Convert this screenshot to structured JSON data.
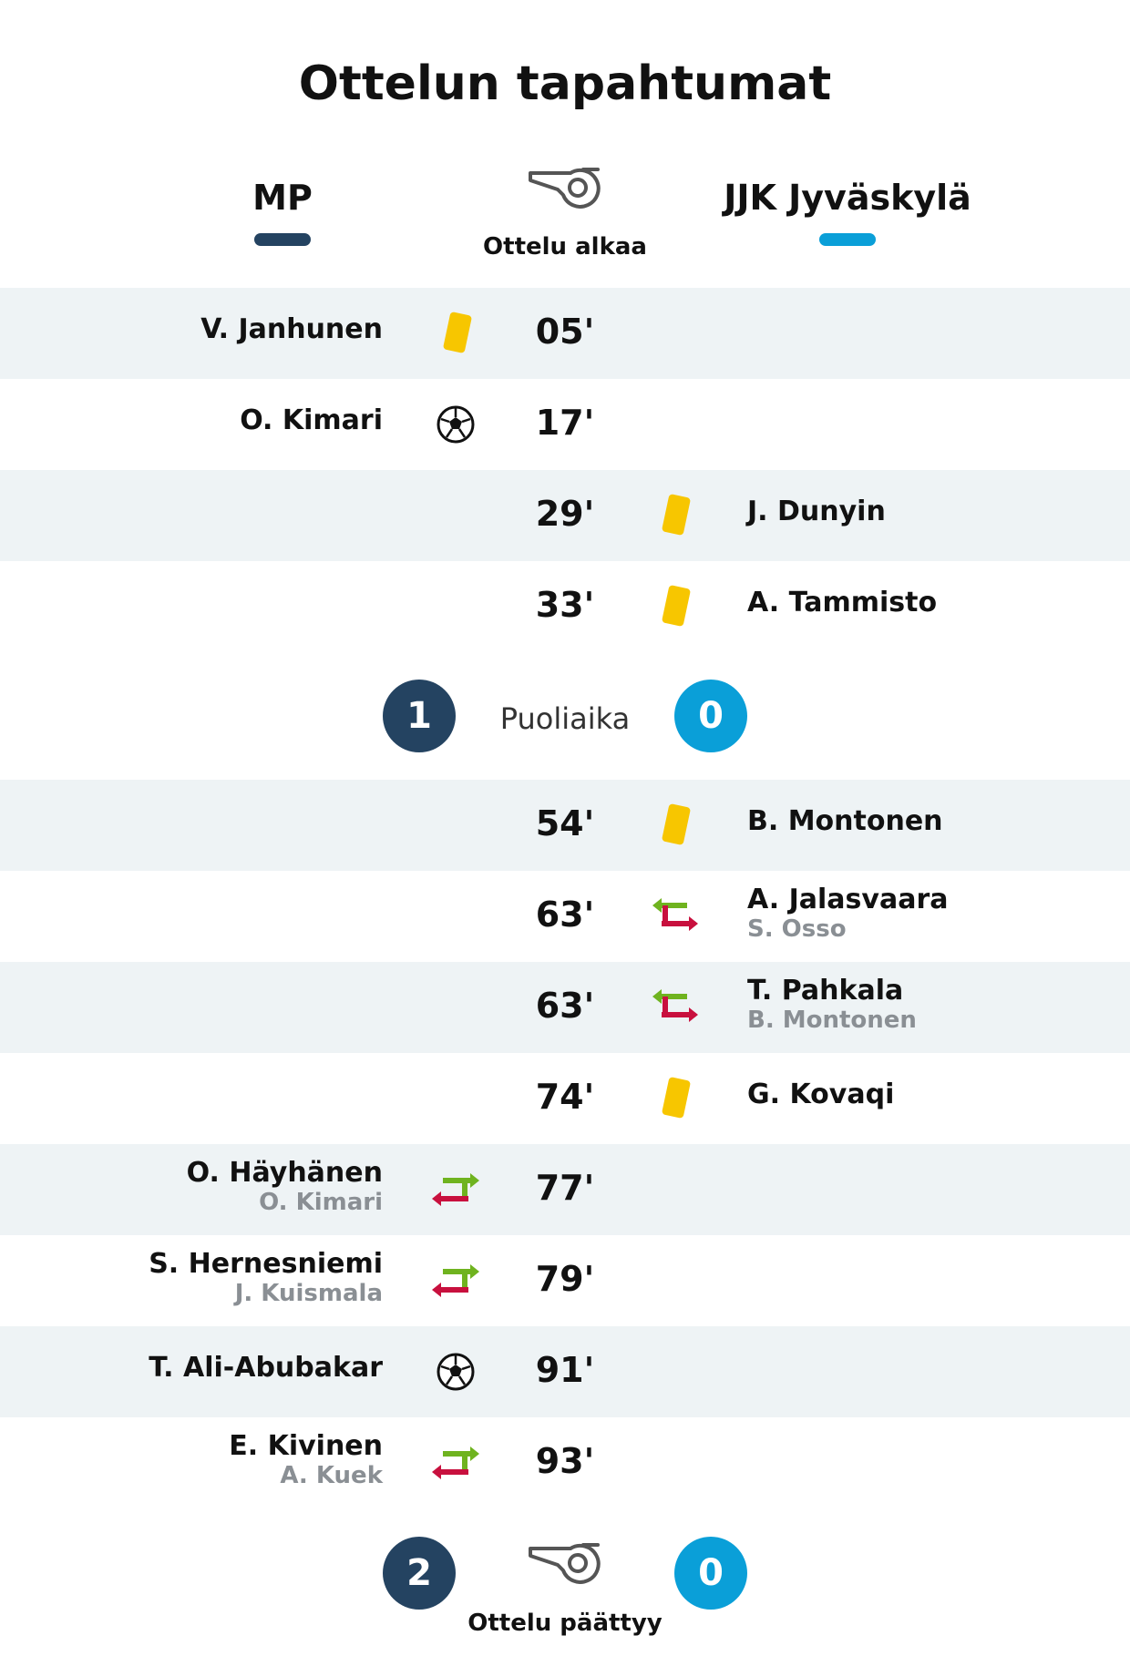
{
  "title": "Ottelun tapahtumat",
  "teams": {
    "home": "MP",
    "away": "JJK Jyväskylä",
    "home_color": "#244361",
    "away_color": "#0a9fd8"
  },
  "kickoff_label": "Ottelu alkaa",
  "halftime": {
    "label": "Puoliaika",
    "home_score": "1",
    "away_score": "0"
  },
  "fulltime": {
    "label": "Ottelu päättyy",
    "home_score": "2",
    "away_score": "0"
  },
  "events_first_half": [
    {
      "minute": "05'",
      "team": "home",
      "type": "yellow-card",
      "player": "V. Janhunen",
      "sub_out": ""
    },
    {
      "minute": "17'",
      "team": "home",
      "type": "goal",
      "player": "O. Kimari",
      "sub_out": ""
    },
    {
      "minute": "29'",
      "team": "away",
      "type": "yellow-card",
      "player": "J. Dunyin",
      "sub_out": ""
    },
    {
      "minute": "33'",
      "team": "away",
      "type": "yellow-card",
      "player": "A. Tammisto",
      "sub_out": ""
    }
  ],
  "events_second_half": [
    {
      "minute": "54'",
      "team": "away",
      "type": "yellow-card",
      "player": "B. Montonen",
      "sub_out": ""
    },
    {
      "minute": "63'",
      "team": "away",
      "type": "substitution",
      "player": "A. Jalasvaara",
      "sub_out": "S. Osso"
    },
    {
      "minute": "63'",
      "team": "away",
      "type": "substitution",
      "player": "T. Pahkala",
      "sub_out": "B. Montonen"
    },
    {
      "minute": "74'",
      "team": "away",
      "type": "yellow-card",
      "player": "G. Kovaqi",
      "sub_out": ""
    },
    {
      "minute": "77'",
      "team": "home",
      "type": "substitution",
      "player": "O. Häyhänen",
      "sub_out": "O. Kimari"
    },
    {
      "minute": "79'",
      "team": "home",
      "type": "substitution",
      "player": "S. Hernesniemi",
      "sub_out": "J. Kuismala"
    },
    {
      "minute": "91'",
      "team": "home",
      "type": "goal",
      "player": "T. Ali-Abubakar",
      "sub_out": ""
    },
    {
      "minute": "93'",
      "team": "home",
      "type": "substitution",
      "player": "E. Kivinen",
      "sub_out": "A. Kuek"
    }
  ],
  "colors": {
    "yellow_card": "#f7c600",
    "sub_in": "#6fb31f",
    "sub_out": "#c8103e",
    "row_shade": "#eef3f5"
  }
}
